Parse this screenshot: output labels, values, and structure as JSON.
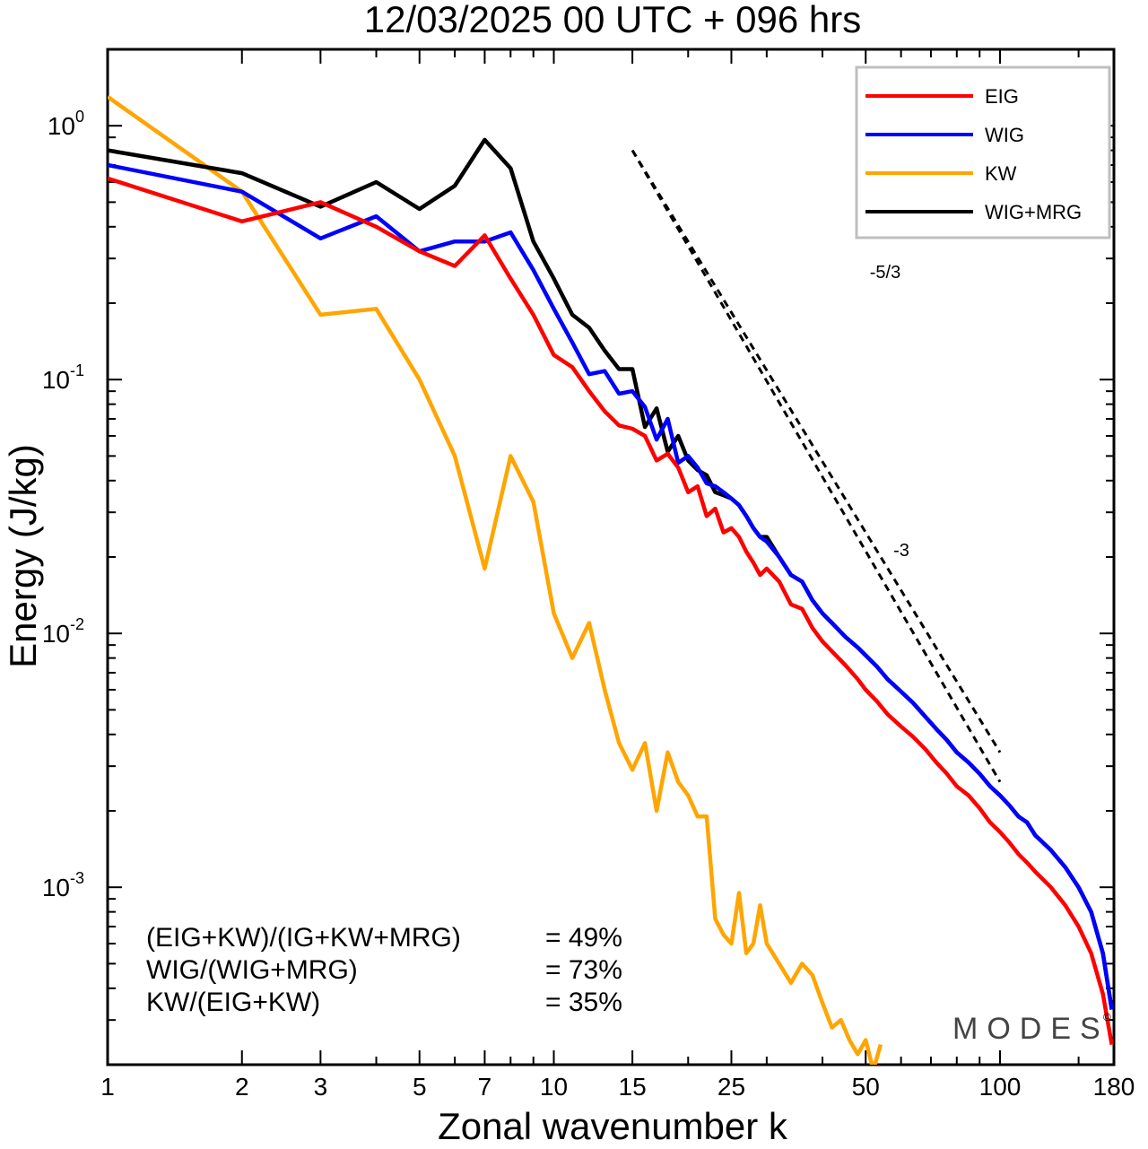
{
  "chart_data": {
    "type": "line",
    "title": "12/03/2025  00 UTC  + 096 hrs",
    "xlabel": "Zonal wavenumber k",
    "ylabel": "Energy (J/kg)",
    "x_scale": "log",
    "y_scale": "log",
    "xlim": [
      1,
      180
    ],
    "ylim": [
      0.0002,
      2
    ],
    "x_ticks": [
      1,
      2,
      3,
      5,
      7,
      10,
      15,
      25,
      50,
      100,
      180
    ],
    "y_ticks": [
      {
        "value": 1,
        "base": "10",
        "exp": "0"
      },
      {
        "value": 0.1,
        "base": "10",
        "exp": "-1"
      },
      {
        "value": 0.01,
        "base": "10",
        "exp": "-2"
      },
      {
        "value": 0.001,
        "base": "10",
        "exp": "-3"
      }
    ],
    "grid": false,
    "legend_position": "top-right",
    "series": [
      {
        "name": "EIG",
        "color": "#ff0000",
        "x": [
          1,
          2,
          3,
          4,
          5,
          6,
          7,
          8,
          9,
          10,
          11,
          12,
          13,
          14,
          15,
          16,
          17,
          18,
          19,
          20,
          21,
          22,
          23,
          24,
          25,
          26,
          27,
          28,
          29,
          30,
          32,
          34,
          36,
          38,
          40,
          42,
          45,
          48,
          50,
          53,
          56,
          60,
          64,
          68,
          72,
          76,
          80,
          85,
          90,
          95,
          100,
          105,
          110,
          115,
          120,
          130,
          140,
          150,
          160,
          170,
          178
        ],
        "y": [
          0.62,
          0.42,
          0.5,
          0.4,
          0.32,
          0.28,
          0.37,
          0.25,
          0.18,
          0.125,
          0.112,
          0.09,
          0.075,
          0.066,
          0.064,
          0.06,
          0.048,
          0.051,
          0.045,
          0.036,
          0.038,
          0.029,
          0.031,
          0.025,
          0.026,
          0.024,
          0.021,
          0.019,
          0.017,
          0.018,
          0.016,
          0.013,
          0.0125,
          0.0105,
          0.0093,
          0.0085,
          0.0075,
          0.0066,
          0.006,
          0.0054,
          0.0048,
          0.0043,
          0.0039,
          0.0035,
          0.0031,
          0.0028,
          0.0025,
          0.0023,
          0.00205,
          0.0018,
          0.00165,
          0.0015,
          0.00135,
          0.00125,
          0.00115,
          0.001,
          0.00085,
          0.0007,
          0.00055,
          0.00038,
          0.00024
        ]
      },
      {
        "name": "WIG",
        "color": "#0000ff",
        "x": [
          1,
          2,
          3,
          4,
          5,
          6,
          7,
          8,
          9,
          10,
          11,
          12,
          13,
          14,
          15,
          16,
          17,
          18,
          19,
          20,
          21,
          22,
          23,
          24,
          25,
          26,
          27,
          28,
          29,
          30,
          32,
          34,
          36,
          38,
          40,
          42,
          45,
          48,
          50,
          53,
          56,
          60,
          64,
          68,
          72,
          76,
          80,
          85,
          90,
          95,
          100,
          105,
          110,
          115,
          120,
          130,
          140,
          150,
          160,
          170,
          178
        ],
        "y": [
          0.7,
          0.55,
          0.36,
          0.44,
          0.32,
          0.35,
          0.35,
          0.38,
          0.27,
          0.19,
          0.14,
          0.105,
          0.108,
          0.088,
          0.09,
          0.078,
          0.058,
          0.07,
          0.047,
          0.05,
          0.045,
          0.039,
          0.038,
          0.036,
          0.034,
          0.032,
          0.029,
          0.026,
          0.024,
          0.023,
          0.02,
          0.017,
          0.016,
          0.0135,
          0.012,
          0.011,
          0.0097,
          0.0088,
          0.0082,
          0.0074,
          0.0066,
          0.0059,
          0.0053,
          0.0047,
          0.0042,
          0.0038,
          0.0034,
          0.0031,
          0.0028,
          0.0025,
          0.0023,
          0.0021,
          0.0019,
          0.0018,
          0.0016,
          0.0014,
          0.0012,
          0.001,
          0.0008,
          0.00055,
          0.00033
        ]
      },
      {
        "name": "KW",
        "color": "#ffa500",
        "x": [
          1,
          2,
          3,
          4,
          5,
          6,
          7,
          8,
          9,
          10,
          11,
          12,
          13,
          14,
          15,
          16,
          17,
          18,
          19,
          20,
          21,
          22,
          23,
          24,
          25,
          26,
          27,
          28,
          29,
          30,
          32,
          34,
          36,
          38,
          40,
          42,
          44,
          46,
          48,
          50,
          52,
          54
        ],
        "y": [
          1.3,
          0.55,
          0.18,
          0.19,
          0.1,
          0.05,
          0.018,
          0.05,
          0.033,
          0.012,
          0.008,
          0.011,
          0.006,
          0.0037,
          0.0029,
          0.0037,
          0.002,
          0.0034,
          0.0026,
          0.0023,
          0.0019,
          0.0019,
          0.00075,
          0.00065,
          0.0006,
          0.00095,
          0.00055,
          0.0006,
          0.00085,
          0.0006,
          0.0005,
          0.00042,
          0.0005,
          0.00045,
          0.00035,
          0.00028,
          0.0003,
          0.00025,
          0.00022,
          0.00025,
          0.00019,
          0.00024
        ]
      },
      {
        "name": "WIG+MRG",
        "color": "#000000",
        "x": [
          1,
          2,
          3,
          4,
          5,
          6,
          7,
          8,
          9,
          10,
          11,
          12,
          13,
          14,
          15,
          16,
          17,
          18,
          19,
          20,
          21,
          22,
          23,
          24,
          25,
          26,
          27,
          28,
          29,
          30,
          32,
          34,
          36,
          38,
          40,
          42,
          45,
          48,
          50,
          53,
          56,
          60,
          64,
          68,
          72,
          76,
          80,
          85,
          90,
          95,
          100,
          105,
          110,
          115,
          120,
          130,
          140,
          150,
          160,
          170,
          178
        ],
        "y": [
          0.8,
          0.65,
          0.48,
          0.6,
          0.47,
          0.58,
          0.88,
          0.68,
          0.35,
          0.25,
          0.18,
          0.16,
          0.13,
          0.11,
          0.11,
          0.065,
          0.077,
          0.052,
          0.06,
          0.048,
          0.044,
          0.042,
          0.036,
          0.035,
          0.034,
          0.032,
          0.029,
          0.026,
          0.024,
          0.024,
          0.02,
          0.017,
          0.016,
          0.0135,
          0.012,
          0.011,
          0.0097,
          0.0088,
          0.0082,
          0.0074,
          0.0066,
          0.0059,
          0.0053,
          0.0047,
          0.0042,
          0.0038,
          0.0034,
          0.0031,
          0.0028,
          0.0025,
          0.0023,
          0.0021,
          0.0019,
          0.0018,
          0.0016,
          0.0014,
          0.0012,
          0.001,
          0.0008,
          0.00055,
          0.00033
        ]
      }
    ],
    "reference_lines": [
      {
        "label": "-5/3",
        "x": [
          15,
          100
        ],
        "y": [
          0.8,
          0.0034
        ]
      },
      {
        "label": "-3",
        "x": [
          15,
          100
        ],
        "y": [
          0.8,
          0.0026
        ]
      }
    ],
    "annotations": [
      {
        "text": "(EIG+KW)/(IG+KW+MRG)",
        "value": "= 49%"
      },
      {
        "text": "WIG/(WIG+MRG)",
        "value": "= 73%"
      },
      {
        "text": "KW/(EIG+KW)",
        "value": "= 35%"
      }
    ],
    "watermark": "MODES",
    "watermark_mark": "©"
  }
}
